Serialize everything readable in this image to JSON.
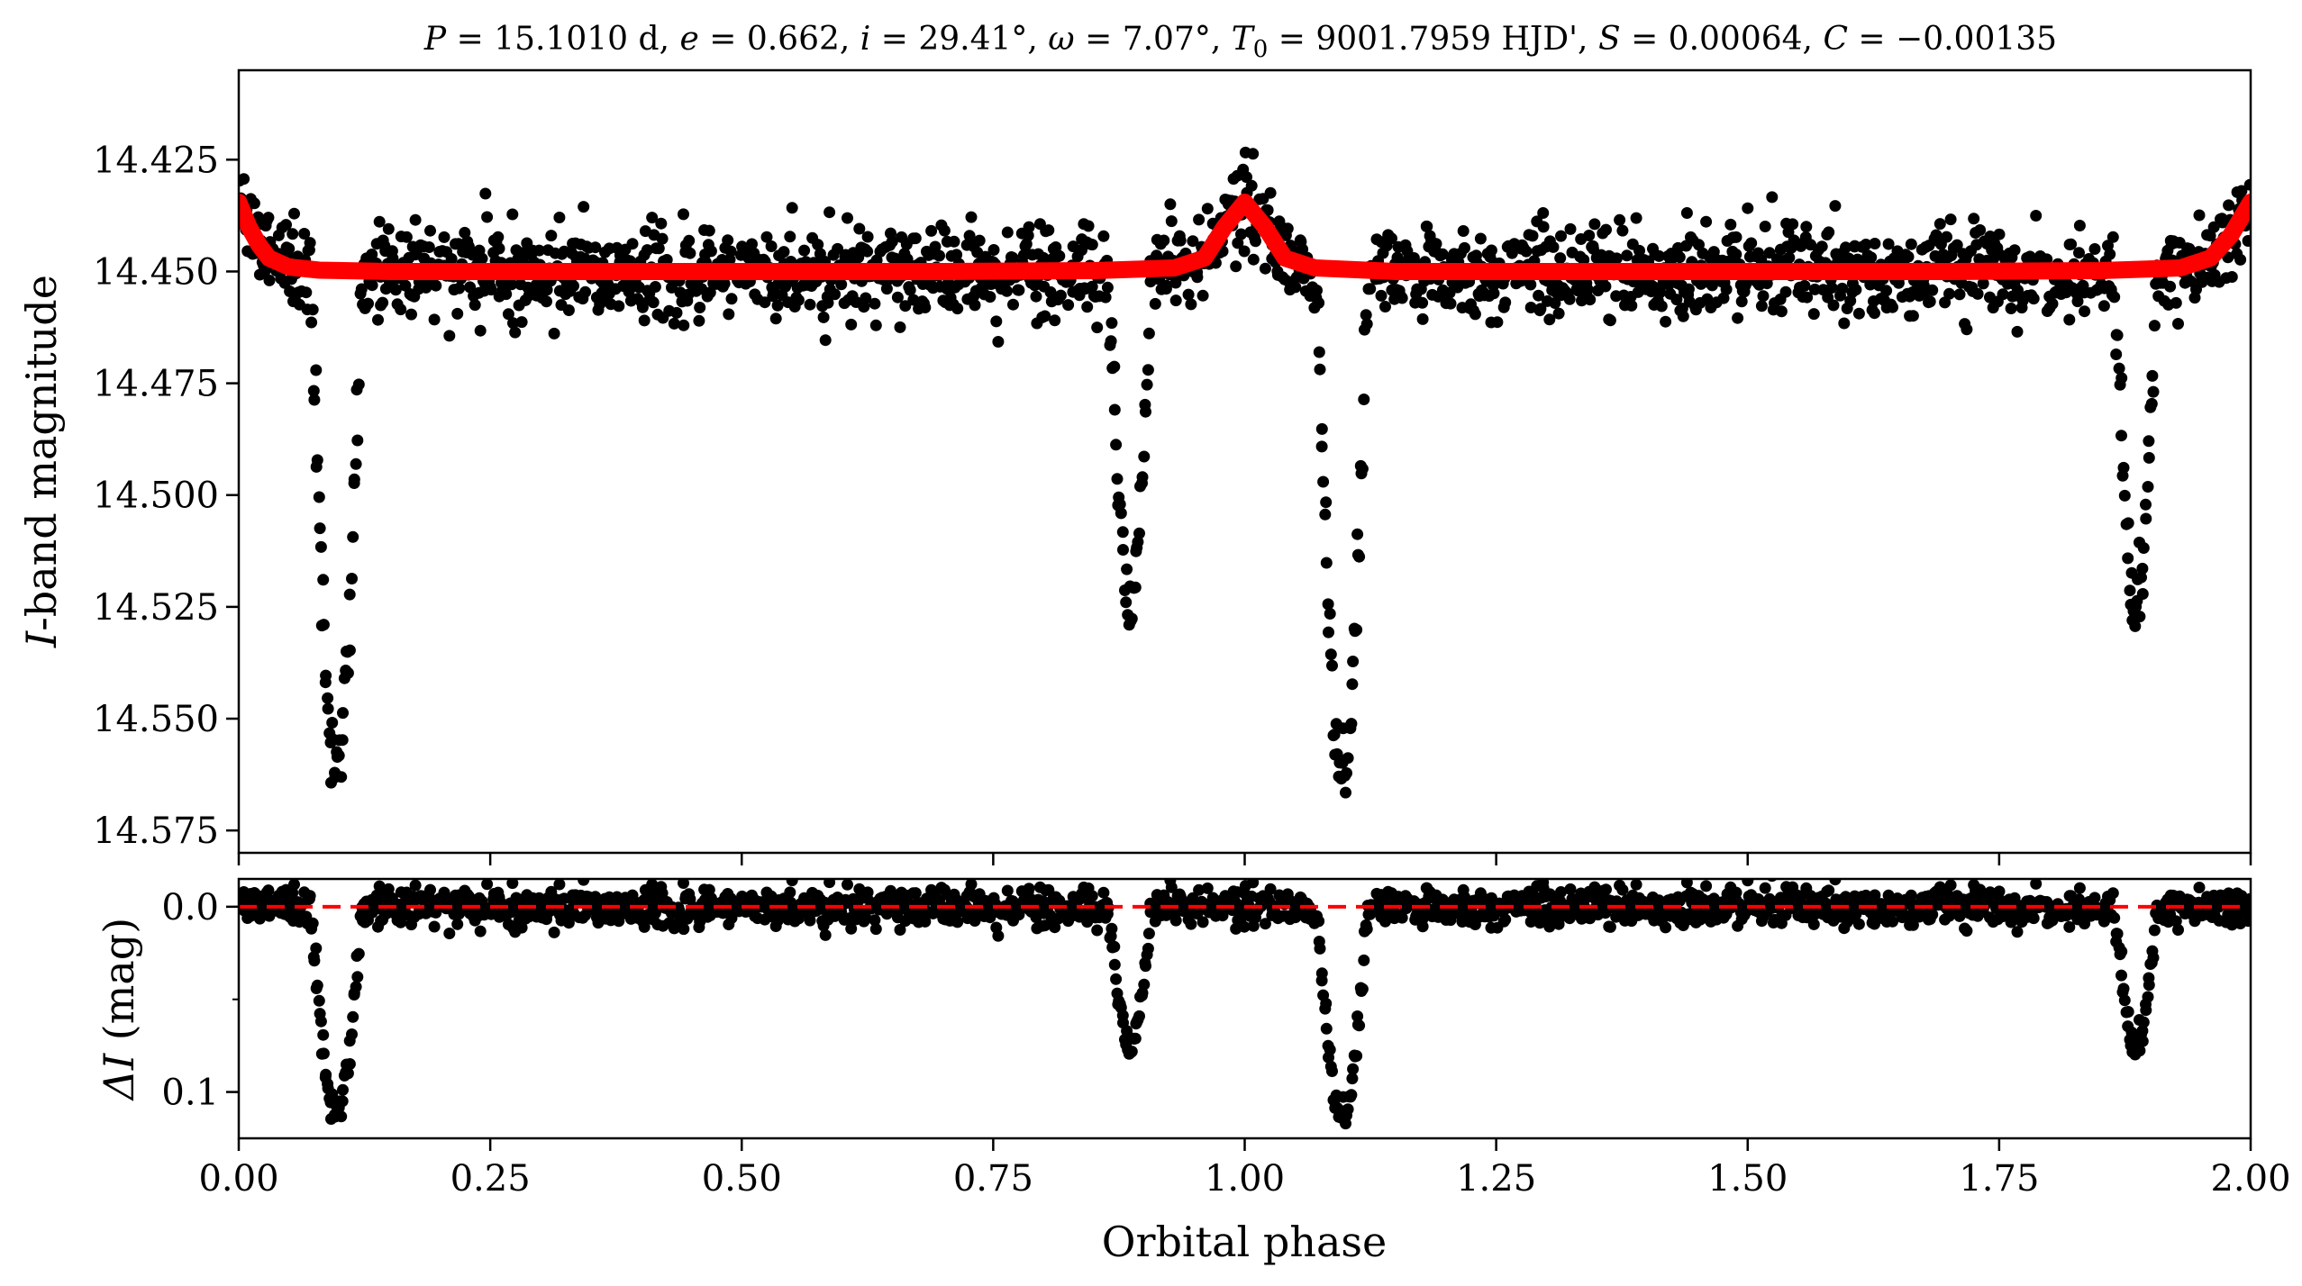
{
  "chart_data": [
    {
      "type": "scatter",
      "panel": "top",
      "title": "P = 15.1010 d, e = 0.662, i = 29.41°, ω = 7.07°, T0 = 9001.7959 HJD', S = 0.00064, C = −0.00135",
      "title_parts": {
        "P_sym": "P",
        "P_val": " = 15.1010 d, ",
        "e_sym": "e",
        "e_val": " = 0.662, ",
        "i_sym": "i",
        "i_val": " = 29.41°, ",
        "w_sym": "ω",
        "w_val": " = 7.07°, ",
        "T_sym": "T",
        "T_sub": "0",
        "T_val": " = 9001.7959 HJD', ",
        "S_sym": "S",
        "S_val": " = 0.00064, ",
        "C_sym": "C",
        "C_val": " = −0.00135"
      },
      "xlabel": "",
      "ylabel": "I-band magnitude",
      "ylabel_parts": {
        "sym": "I",
        "rest": "-band magnitude"
      },
      "xlim": [
        0.0,
        2.0
      ],
      "ylim": [
        14.58,
        14.405
      ],
      "y_inverted": true,
      "yticks": [
        "14.425",
        "14.450",
        "14.475",
        "14.500",
        "14.525",
        "14.550",
        "14.575"
      ],
      "ytick_values": [
        14.425,
        14.45,
        14.475,
        14.5,
        14.525,
        14.55,
        14.575
      ],
      "xticks_values": [
        0.0,
        0.25,
        0.5,
        0.75,
        1.0,
        1.25,
        1.5,
        1.75,
        2.0
      ],
      "series": [
        {
          "kind": "observations",
          "color": "#000000",
          "baseline": 14.452,
          "scatter": 0.005,
          "eclipses": [
            {
              "center": 0.097,
              "depth": 0.112,
              "half_width": 0.026
            },
            {
              "center": 0.886,
              "depth": 0.075,
              "half_width": 0.022
            },
            {
              "center": 1.097,
              "depth": 0.112,
              "half_width": 0.026
            },
            {
              "center": 1.886,
              "depth": 0.075,
              "half_width": 0.022
            }
          ],
          "heartbeat_peak": {
            "center": 1.0,
            "amplitude": 0.02
          }
        },
        {
          "kind": "model",
          "color": "#ff0000",
          "baseline": 14.45,
          "peak_value": 14.4345,
          "edge_value": 14.4345,
          "points": [
            [
              0.0,
              14.4345
            ],
            [
              0.01,
              14.44
            ],
            [
              0.02,
              14.444
            ],
            [
              0.03,
              14.447
            ],
            [
              0.05,
              14.449
            ],
            [
              0.08,
              14.4497
            ],
            [
              0.15,
              14.45
            ],
            [
              0.3,
              14.45
            ],
            [
              0.5,
              14.45
            ],
            [
              0.7,
              14.45
            ],
            [
              0.85,
              14.4498
            ],
            [
              0.93,
              14.4492
            ],
            [
              0.96,
              14.447
            ],
            [
              0.98,
              14.44
            ],
            [
              1.0,
              14.4345
            ],
            [
              1.02,
              14.44
            ],
            [
              1.04,
              14.447
            ],
            [
              1.07,
              14.4492
            ],
            [
              1.15,
              14.45
            ],
            [
              1.3,
              14.45
            ],
            [
              1.5,
              14.45
            ],
            [
              1.7,
              14.45
            ],
            [
              1.85,
              14.4498
            ],
            [
              1.93,
              14.4492
            ],
            [
              1.96,
              14.447
            ],
            [
              1.98,
              14.442
            ],
            [
              2.0,
              14.4345
            ]
          ]
        }
      ]
    },
    {
      "type": "scatter",
      "panel": "bottom",
      "xlabel": "Orbital phase",
      "ylabel": "ΔI (mag)",
      "ylabel_parts": {
        "sym": "ΔI",
        "rest": " (mag)"
      },
      "xlim": [
        0.0,
        2.0
      ],
      "ylim": [
        0.125,
        -0.015
      ],
      "y_inverted": true,
      "yticks": [
        "0.0",
        "0.1"
      ],
      "ytick_values": [
        0.0,
        0.1
      ],
      "xticks": [
        "0.00",
        "0.25",
        "0.50",
        "0.75",
        "1.00",
        "1.25",
        "1.50",
        "1.75",
        "2.00"
      ],
      "xtick_values": [
        0.0,
        0.25,
        0.5,
        0.75,
        1.0,
        1.25,
        1.5,
        1.75,
        2.0
      ],
      "zero_line": {
        "value": 0.0,
        "color": "#ff0000",
        "style": "dashed"
      },
      "series": [
        {
          "kind": "residuals",
          "color": "#000000",
          "baseline": 0.0,
          "scatter": 0.005,
          "eclipses": [
            {
              "center": 0.097,
              "depth": 0.112,
              "half_width": 0.026
            },
            {
              "center": 0.886,
              "depth": 0.075,
              "half_width": 0.022
            },
            {
              "center": 1.097,
              "depth": 0.112,
              "half_width": 0.026
            },
            {
              "center": 1.886,
              "depth": 0.075,
              "half_width": 0.022
            }
          ]
        }
      ]
    }
  ]
}
